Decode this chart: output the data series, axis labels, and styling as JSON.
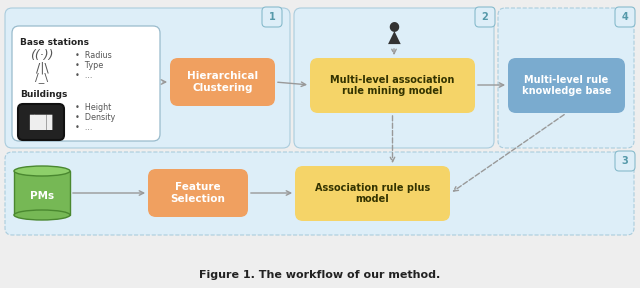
{
  "bg_color": "#eeeeee",
  "panel_fill": "#ddeef8",
  "panel_edge": "#aaccdd",
  "white_fill": "#ffffff",
  "orange_box": "#f0a060",
  "yellow_box": "#f5d468",
  "blue_box": "#7aabcf",
  "green_cyl_top": "#8ecf6a",
  "green_cyl_body": "#76b855",
  "green_cyl_edge": "#4a8830",
  "arrow_color": "#999999",
  "badge_fill": "#ddeef8",
  "badge_edge": "#88bbcc",
  "badge_text": "#5599aa",
  "title": "Figure 1. The workflow of our method.",
  "box1_text": "Hierarchical\nClustering",
  "box2_text": "Multi-level association\nrule mining model",
  "box3_text": "Multi-level rule\nknowledge base",
  "box4_text": "Feature\nSelection",
  "box5_text": "Association rule plus\nmodel",
  "pm_text": "PMs",
  "bs_text": "Base stations",
  "bld_text": "Buildings"
}
